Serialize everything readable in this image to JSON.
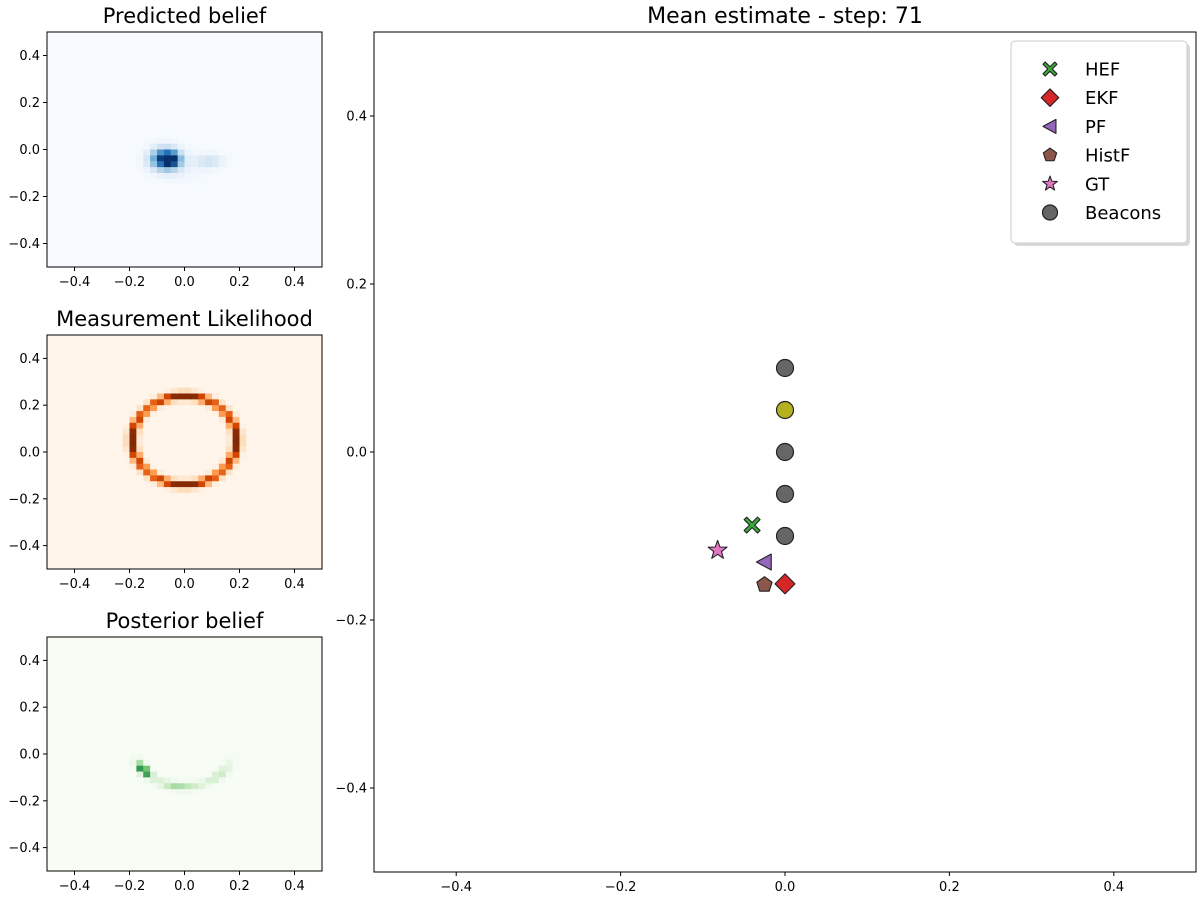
{
  "chart_data": [
    {
      "type": "heatmap",
      "title": "Predicted belief",
      "colormap": "Blues",
      "xlim": [
        -0.5,
        0.5
      ],
      "ylim": [
        -0.5,
        0.5
      ],
      "xticks": [
        -0.4,
        -0.2,
        0.0,
        0.2,
        0.4
      ],
      "yticks": [
        -0.4,
        -0.2,
        0.0,
        0.2,
        0.4
      ],
      "xtick_labels": [
        "−0.4",
        "−0.2",
        "0.0",
        "0.2",
        "0.4"
      ],
      "ytick_labels": [
        "−0.4",
        "−0.2",
        "0.0",
        "0.2",
        "0.4"
      ],
      "blobs": [
        {
          "x": -0.07,
          "y": -0.04,
          "sx": 0.035,
          "sy": 0.03,
          "w": 1.0
        },
        {
          "x": -0.045,
          "y": -0.045,
          "sx": 0.02,
          "sy": 0.02,
          "w": 0.5
        },
        {
          "x": 0.09,
          "y": -0.05,
          "sx": 0.035,
          "sy": 0.02,
          "w": 0.2
        },
        {
          "x": -0.02,
          "y": -0.08,
          "sx": 0.06,
          "sy": 0.04,
          "w": 0.06
        }
      ]
    },
    {
      "type": "heatmap",
      "title": "Measurement Likelihood",
      "colormap": "Oranges",
      "xlim": [
        -0.5,
        0.5
      ],
      "ylim": [
        -0.5,
        0.5
      ],
      "xticks": [
        -0.4,
        -0.2,
        0.0,
        0.2,
        0.4
      ],
      "yticks": [
        -0.4,
        -0.2,
        0.0,
        0.2,
        0.4
      ],
      "xtick_labels": [
        "−0.4",
        "−0.2",
        "0.0",
        "0.2",
        "0.4"
      ],
      "ytick_labels": [
        "−0.4",
        "−0.2",
        "0.0",
        "0.2",
        "0.4"
      ],
      "ring": {
        "cx": 0.0,
        "cy": 0.05,
        "r": 0.19,
        "width": 0.012
      }
    },
    {
      "type": "heatmap",
      "title": "Posterior belief",
      "colormap": "Greens",
      "xlim": [
        -0.5,
        0.5
      ],
      "ylim": [
        -0.5,
        0.5
      ],
      "xticks": [
        -0.4,
        -0.2,
        0.0,
        0.2,
        0.4
      ],
      "yticks": [
        -0.4,
        -0.2,
        0.0,
        0.2,
        0.4
      ],
      "xtick_labels": [
        "−0.4",
        "−0.2",
        "0.0",
        "0.2",
        "0.4"
      ],
      "ytick_labels": [
        "−0.4",
        "−0.2",
        "0.0",
        "0.2",
        "0.4"
      ],
      "arc": {
        "cx": 0.0,
        "cy": 0.05,
        "r": 0.19,
        "width": 0.012,
        "blobs": [
          {
            "x": -0.15,
            "y": -0.07,
            "sx": 0.025,
            "sy": 0.025,
            "w": 1.0
          },
          {
            "x": -0.03,
            "y": -0.14,
            "sx": 0.06,
            "sy": 0.03,
            "w": 0.35
          },
          {
            "x": 0.12,
            "y": -0.08,
            "sx": 0.04,
            "sy": 0.04,
            "w": 0.25
          }
        ]
      }
    },
    {
      "type": "scatter",
      "title": "Mean estimate - step: 71",
      "xlim": [
        -0.5,
        0.5
      ],
      "ylim": [
        -0.5,
        0.5
      ],
      "xticks": [
        -0.4,
        -0.2,
        0.0,
        0.2,
        0.4
      ],
      "yticks": [
        -0.4,
        -0.2,
        0.0,
        0.2,
        0.4
      ],
      "xtick_labels": [
        "−0.4",
        "−0.2",
        "0.0",
        "0.2",
        "0.4"
      ],
      "ytick_labels": [
        "−0.4",
        "−0.2",
        "0.0",
        "0.2",
        "0.4"
      ],
      "legend_position": "top-right",
      "series": [
        {
          "name": "HEF",
          "marker": "X",
          "color": "#3aa83a",
          "points": [
            [
              -0.04,
              -0.087
            ]
          ]
        },
        {
          "name": "EKF",
          "marker": "D",
          "color": "#d62728",
          "points": [
            [
              0.0,
              -0.157
            ]
          ]
        },
        {
          "name": "PF",
          "marker": "<",
          "color": "#9467bd",
          "points": [
            [
              -0.025,
              -0.131
            ]
          ]
        },
        {
          "name": "HistF",
          "marker": "p",
          "color": "#8c564b",
          "points": [
            [
              -0.025,
              -0.158
            ]
          ]
        },
        {
          "name": "GT",
          "marker": "*",
          "color": "#e377c2",
          "points": [
            [
              -0.082,
              -0.117
            ]
          ]
        },
        {
          "name": "Beacons",
          "marker": "o",
          "color": "#666666",
          "points": [
            [
              0.0,
              0.1
            ],
            [
              0.0,
              0.05
            ],
            [
              0.0,
              0.0
            ],
            [
              0.0,
              -0.05
            ],
            [
              0.0,
              -0.1
            ]
          ],
          "highlight_index": 1,
          "highlight_color": "#b5b020"
        }
      ]
    }
  ]
}
